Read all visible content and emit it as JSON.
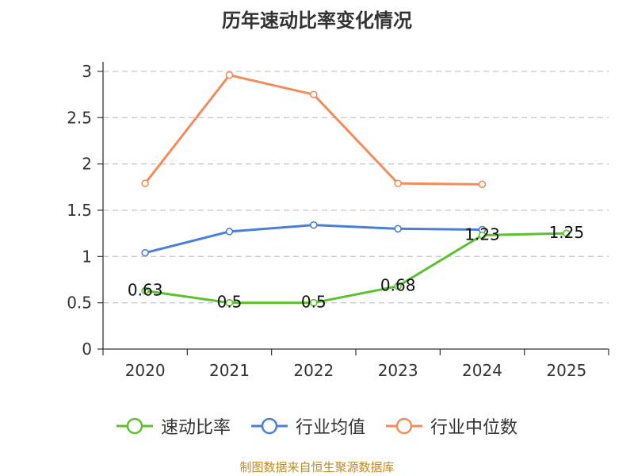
{
  "title": "历年速动比率变化情况",
  "source": "制图数据来自恒生聚源数据库",
  "chart_data": {
    "type": "line",
    "title": "历年速动比率变化情况",
    "categories": [
      "2020",
      "2021",
      "2022",
      "2023",
      "2024",
      "2025"
    ],
    "ylim": [
      0,
      3
    ],
    "yticks": [
      "0",
      "0.5",
      "1",
      "1.5",
      "2",
      "2.5",
      "3"
    ],
    "grid": true,
    "legend_position": "bottom",
    "series": [
      {
        "name": "速动比率",
        "color": "#5bc12f",
        "values": [
          0.63,
          0.5,
          0.5,
          0.68,
          1.23,
          1.25
        ],
        "labels": [
          "0.63",
          "0.5",
          "0.5",
          "0.68",
          "1.23",
          "1.25"
        ]
      },
      {
        "name": "行业均值",
        "color": "#4a7fd6",
        "values": [
          1.04,
          1.27,
          1.34,
          1.3,
          1.29,
          null
        ]
      },
      {
        "name": "行业中位数",
        "color": "#f28c5b",
        "values": [
          1.79,
          2.96,
          2.75,
          1.79,
          1.78,
          null
        ]
      }
    ]
  }
}
